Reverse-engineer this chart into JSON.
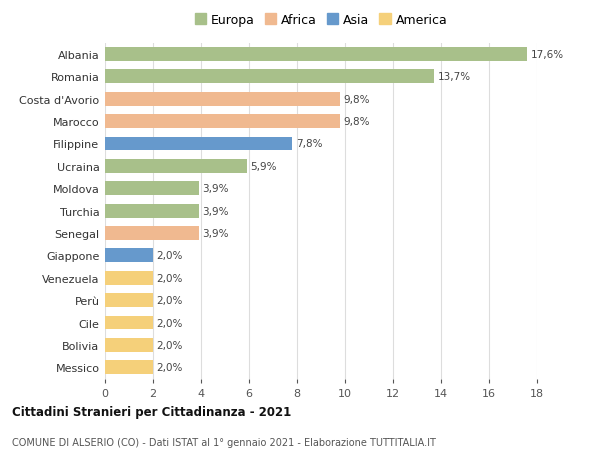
{
  "categories": [
    "Albania",
    "Romania",
    "Costa d'Avorio",
    "Marocco",
    "Filippine",
    "Ucraina",
    "Moldova",
    "Turchia",
    "Senegal",
    "Giappone",
    "Venezuela",
    "Perù",
    "Cile",
    "Bolivia",
    "Messico"
  ],
  "values": [
    17.6,
    13.7,
    9.8,
    9.8,
    7.8,
    5.9,
    3.9,
    3.9,
    3.9,
    2.0,
    2.0,
    2.0,
    2.0,
    2.0,
    2.0
  ],
  "labels": [
    "17,6%",
    "13,7%",
    "9,8%",
    "9,8%",
    "7,8%",
    "5,9%",
    "3,9%",
    "3,9%",
    "3,9%",
    "2,0%",
    "2,0%",
    "2,0%",
    "2,0%",
    "2,0%",
    "2,0%"
  ],
  "continents": [
    "Europa",
    "Europa",
    "Africa",
    "Africa",
    "Asia",
    "Europa",
    "Europa",
    "Europa",
    "Africa",
    "Asia",
    "America",
    "America",
    "America",
    "America",
    "America"
  ],
  "continent_colors": {
    "Europa": "#a8c08a",
    "Africa": "#f0b990",
    "Asia": "#6699cc",
    "America": "#f5d07a"
  },
  "legend_order": [
    "Europa",
    "Africa",
    "Asia",
    "America"
  ],
  "xlim": [
    0,
    18
  ],
  "xticks": [
    0,
    2,
    4,
    6,
    8,
    10,
    12,
    14,
    16,
    18
  ],
  "title": "Cittadini Stranieri per Cittadinanza - 2021",
  "subtitle": "COMUNE DI ALSERIO (CO) - Dati ISTAT al 1° gennaio 2021 - Elaborazione TUTTITALIA.IT",
  "background_color": "#ffffff",
  "grid_color": "#dddddd",
  "bar_height": 0.62
}
